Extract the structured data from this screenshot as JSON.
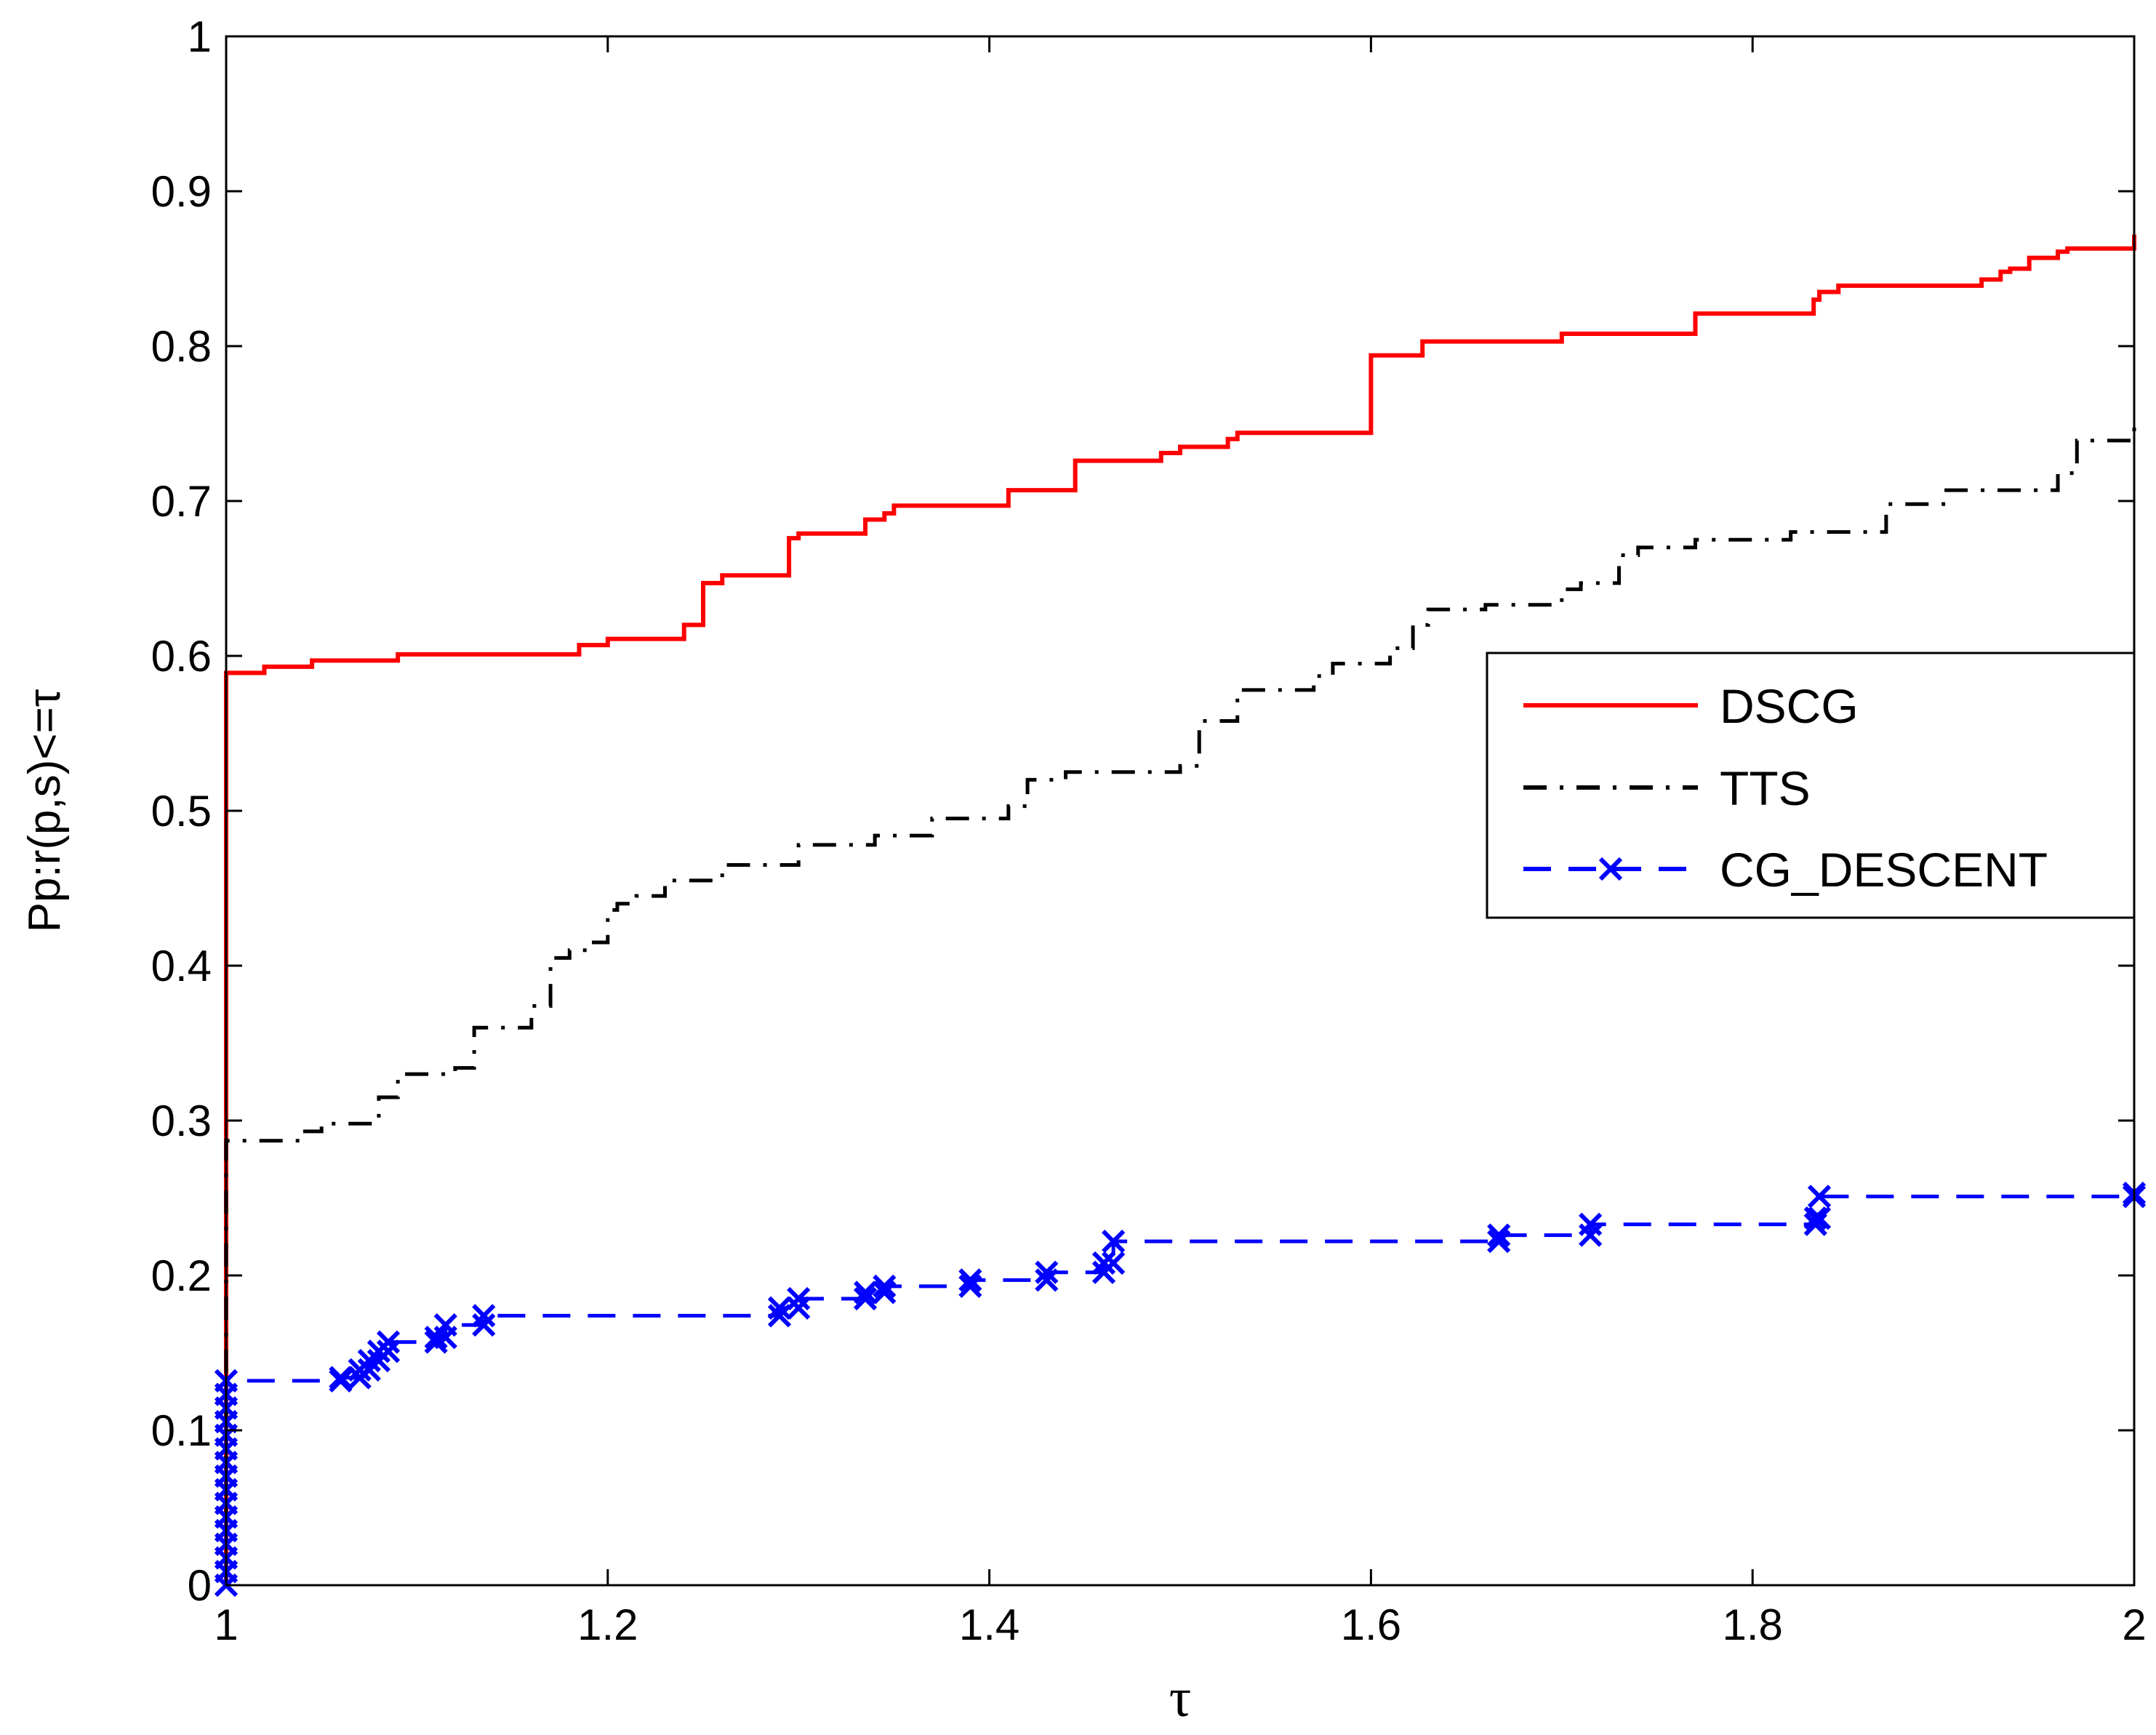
{
  "chart_data": {
    "type": "line",
    "title": "",
    "xlabel": "τ",
    "ylabel": "Pp:r(p,s)<=τ",
    "xlim": [
      1,
      2
    ],
    "ylim": [
      0,
      1
    ],
    "grid": false,
    "legend_position": "right-middle",
    "x_ticks": [
      1,
      1.2,
      1.4,
      1.6,
      1.8,
      2
    ],
    "x_tick_labels": [
      "1",
      "1.2",
      "1.4",
      "1.6",
      "1.8",
      "2"
    ],
    "y_ticks": [
      0,
      0.1,
      0.2,
      0.3,
      0.4,
      0.5,
      0.6,
      0.7,
      0.8,
      0.9,
      1
    ],
    "y_tick_labels": [
      "0",
      "0.1",
      "0.2",
      "0.3",
      "0.4",
      "0.5",
      "0.6",
      "0.7",
      "0.8",
      "0.9",
      "1"
    ],
    "series": [
      {
        "name": "DSCG",
        "color": "#ff0000",
        "line_style": "solid",
        "marker": "none",
        "x": [
          1.0,
          1.0,
          1.02,
          1.045,
          1.09,
          1.185,
          1.2,
          1.24,
          1.25,
          1.26,
          1.295,
          1.3,
          1.335,
          1.345,
          1.35,
          1.41,
          1.445,
          1.49,
          1.5,
          1.525,
          1.53,
          1.6,
          1.627,
          1.7,
          1.77,
          1.832,
          1.835,
          1.845,
          1.92,
          1.93,
          1.935,
          1.945,
          1.96,
          1.965,
          2.0
        ],
        "y": [
          0.0,
          0.589,
          0.593,
          0.597,
          0.601,
          0.607,
          0.611,
          0.62,
          0.647,
          0.652,
          0.676,
          0.679,
          0.688,
          0.692,
          0.697,
          0.707,
          0.726,
          0.731,
          0.735,
          0.74,
          0.744,
          0.794,
          0.803,
          0.808,
          0.821,
          0.83,
          0.835,
          0.839,
          0.843,
          0.848,
          0.85,
          0.857,
          0.861,
          0.863,
          0.872
        ]
      },
      {
        "name": "TTS",
        "color": "#000000",
        "line_style": "dashdot",
        "marker": "none",
        "x": [
          1.0,
          1.0,
          1.04,
          1.05,
          1.08,
          1.09,
          1.12,
          1.13,
          1.16,
          1.17,
          1.18,
          1.19,
          1.2,
          1.205,
          1.215,
          1.23,
          1.26,
          1.3,
          1.34,
          1.37,
          1.41,
          1.42,
          1.44,
          1.5,
          1.51,
          1.53,
          1.57,
          1.58,
          1.61,
          1.622,
          1.63,
          1.66,
          1.7,
          1.71,
          1.73,
          1.74,
          1.77,
          1.82,
          1.87,
          1.9,
          1.96,
          1.97,
          2.0
        ],
        "y": [
          0.0,
          0.287,
          0.293,
          0.298,
          0.315,
          0.33,
          0.334,
          0.36,
          0.374,
          0.405,
          0.41,
          0.415,
          0.436,
          0.44,
          0.445,
          0.455,
          0.465,
          0.478,
          0.484,
          0.495,
          0.503,
          0.52,
          0.525,
          0.529,
          0.558,
          0.578,
          0.587,
          0.595,
          0.605,
          0.62,
          0.63,
          0.633,
          0.643,
          0.647,
          0.665,
          0.67,
          0.675,
          0.68,
          0.698,
          0.707,
          0.718,
          0.739,
          0.748
        ]
      },
      {
        "name": "CG_DESCENT",
        "color": "#0000ff",
        "line_style": "dashed",
        "marker": "x",
        "x": [
          1.0,
          1.0,
          1.06,
          1.07,
          1.075,
          1.08,
          1.085,
          1.11,
          1.115,
          1.135,
          1.29,
          1.3,
          1.335,
          1.345,
          1.39,
          1.43,
          1.46,
          1.465,
          1.667,
          1.715,
          1.833,
          1.835,
          2.0
        ],
        "y": [
          0.0,
          0.132,
          0.134,
          0.139,
          0.145,
          0.151,
          0.157,
          0.16,
          0.168,
          0.174,
          0.179,
          0.185,
          0.189,
          0.193,
          0.197,
          0.202,
          0.208,
          0.222,
          0.226,
          0.233,
          0.237,
          0.251,
          0.253
        ]
      }
    ]
  }
}
